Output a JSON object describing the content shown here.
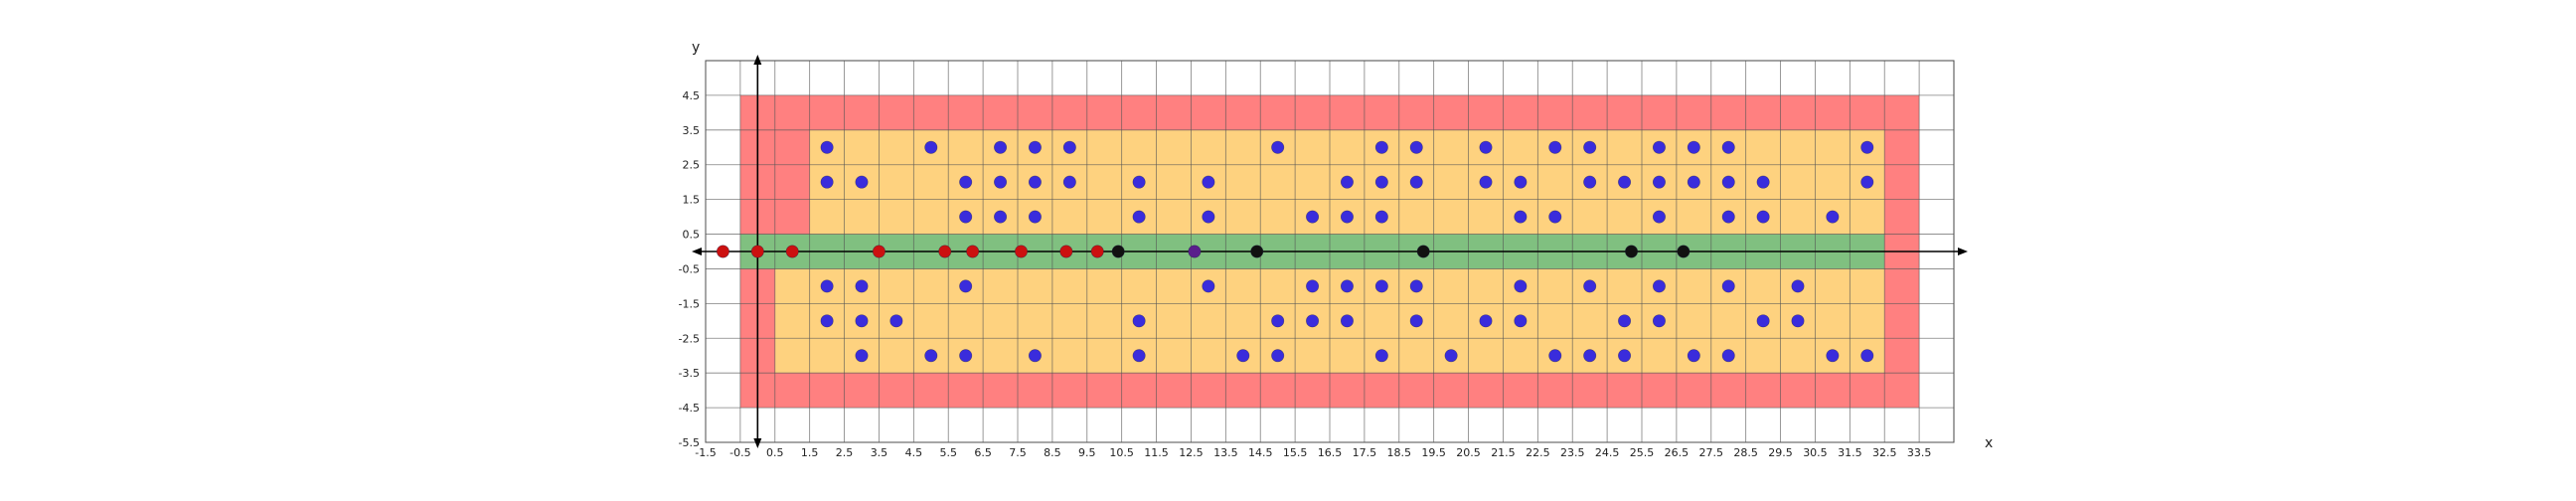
{
  "chart_data": {
    "type": "scatter",
    "title": "",
    "xlabel": "x",
    "ylabel": "y",
    "xlim": [
      -1.5,
      34.5
    ],
    "ylim": [
      -5.5,
      5.5
    ],
    "grid": true,
    "x_ticks": [
      "-1.5",
      "-0.5",
      "0.5",
      "1.5",
      "2.5",
      "3.5",
      "4.5",
      "5.5",
      "6.5",
      "7.5",
      "8.5",
      "9.5",
      "10.5",
      "11.5",
      "12.5",
      "13.5",
      "14.5",
      "15.5",
      "16.5",
      "17.5",
      "18.5",
      "19.5",
      "20.5",
      "21.5",
      "22.5",
      "23.5",
      "24.5",
      "25.5",
      "26.5",
      "27.5",
      "28.5",
      "29.5",
      "30.5",
      "31.5",
      "32.5",
      "33.5"
    ],
    "y_ticks": [
      "4.5",
      "3.5",
      "2.5",
      "1.5",
      "0.5",
      "-0.5",
      "-1.5",
      "-2.5",
      "-3.5",
      "-4.5",
      "-5.5"
    ],
    "regions": [
      {
        "name": "outer-zone",
        "color": "#ff8080",
        "x": [
          -0.5,
          33.5
        ],
        "y": [
          -4.5,
          4.5
        ]
      },
      {
        "name": "inner-zone",
        "color": "#fed27f",
        "upper": {
          "x": [
            1.5,
            32.5
          ],
          "y": [
            0.5,
            3.5
          ]
        },
        "lower": {
          "x": [
            0.5,
            32.5
          ],
          "y": [
            -3.5,
            -0.5
          ]
        }
      },
      {
        "name": "road-lane",
        "color": "#80c080",
        "x": [
          -0.5,
          32.5
        ],
        "y": [
          -0.5,
          0.5
        ]
      }
    ],
    "series": [
      {
        "name": "grid-points",
        "color": "#3a2cdc",
        "points": [
          [
            2,
            3
          ],
          [
            5,
            3
          ],
          [
            7,
            3
          ],
          [
            8,
            3
          ],
          [
            9,
            3
          ],
          [
            15,
            3
          ],
          [
            18,
            3
          ],
          [
            19,
            3
          ],
          [
            21,
            3
          ],
          [
            23,
            3
          ],
          [
            24,
            3
          ],
          [
            26,
            3
          ],
          [
            27,
            3
          ],
          [
            28,
            3
          ],
          [
            32,
            3
          ],
          [
            2,
            2
          ],
          [
            3,
            2
          ],
          [
            6,
            2
          ],
          [
            7,
            2
          ],
          [
            8,
            2
          ],
          [
            9,
            2
          ],
          [
            11,
            2
          ],
          [
            13,
            2
          ],
          [
            17,
            2
          ],
          [
            18,
            2
          ],
          [
            19,
            2
          ],
          [
            21,
            2
          ],
          [
            22,
            2
          ],
          [
            24,
            2
          ],
          [
            25,
            2
          ],
          [
            26,
            2
          ],
          [
            27,
            2
          ],
          [
            28,
            2
          ],
          [
            29,
            2
          ],
          [
            32,
            2
          ],
          [
            6,
            1
          ],
          [
            7,
            1
          ],
          [
            8,
            1
          ],
          [
            11,
            1
          ],
          [
            13,
            1
          ],
          [
            16,
            1
          ],
          [
            17,
            1
          ],
          [
            18,
            1
          ],
          [
            22,
            1
          ],
          [
            23,
            1
          ],
          [
            26,
            1
          ],
          [
            28,
            1
          ],
          [
            29,
            1
          ],
          [
            31,
            1
          ],
          [
            2,
            -1
          ],
          [
            3,
            -1
          ],
          [
            6,
            -1
          ],
          [
            13,
            -1
          ],
          [
            16,
            -1
          ],
          [
            17,
            -1
          ],
          [
            18,
            -1
          ],
          [
            19,
            -1
          ],
          [
            22,
            -1
          ],
          [
            24,
            -1
          ],
          [
            26,
            -1
          ],
          [
            28,
            -1
          ],
          [
            30,
            -1
          ],
          [
            2,
            -2
          ],
          [
            3,
            -2
          ],
          [
            4,
            -2
          ],
          [
            11,
            -2
          ],
          [
            15,
            -2
          ],
          [
            16,
            -2
          ],
          [
            17,
            -2
          ],
          [
            19,
            -2
          ],
          [
            21,
            -2
          ],
          [
            22,
            -2
          ],
          [
            25,
            -2
          ],
          [
            26,
            -2
          ],
          [
            29,
            -2
          ],
          [
            30,
            -2
          ],
          [
            3,
            -3
          ],
          [
            5,
            -3
          ],
          [
            6,
            -3
          ],
          [
            8,
            -3
          ],
          [
            11,
            -3
          ],
          [
            14,
            -3
          ],
          [
            15,
            -3
          ],
          [
            18,
            -3
          ],
          [
            20,
            -3
          ],
          [
            23,
            -3
          ],
          [
            24,
            -3
          ],
          [
            25,
            -3
          ],
          [
            27,
            -3
          ],
          [
            28,
            -3
          ],
          [
            31,
            -3
          ],
          [
            32,
            -3
          ]
        ]
      },
      {
        "name": "red-points",
        "color": "#cc1010",
        "points": [
          [
            -1,
            0
          ],
          [
            0,
            0
          ],
          [
            1,
            0
          ],
          [
            3.5,
            0
          ],
          [
            5.4,
            0
          ],
          [
            6.2,
            0
          ],
          [
            7.6,
            0
          ],
          [
            8.9,
            0
          ],
          [
            9.8,
            0
          ]
        ]
      },
      {
        "name": "black-points",
        "color": "#111111",
        "points": [
          [
            10.4,
            0
          ],
          [
            14.4,
            0
          ],
          [
            19.2,
            0
          ],
          [
            25.2,
            0
          ],
          [
            26.7,
            0
          ]
        ]
      },
      {
        "name": "purple-points",
        "color": "#5a1e8c",
        "points": [
          [
            12.6,
            0
          ]
        ]
      }
    ]
  }
}
